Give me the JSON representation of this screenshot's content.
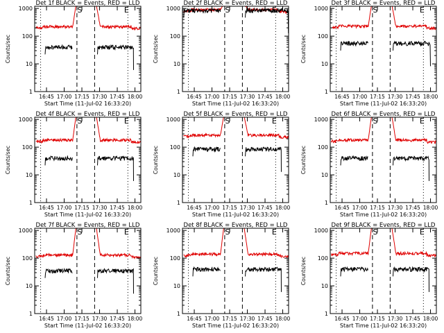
{
  "colors": {
    "events": "#000000",
    "lld": "#e00000",
    "axis": "#000000",
    "background": "#ffffff"
  },
  "shared": {
    "ylabel": "Counts/sec",
    "xlabel": "Start Time (11-Jul-02 16:33:20)",
    "y_ticks": [
      "1",
      "10",
      "100",
      "1000"
    ],
    "ylim": [
      1,
      1200
    ],
    "start_marker": "S",
    "end_marker": "E",
    "legend": {
      "events": "BLACK = Events",
      "lld": "RED = LLD"
    }
  },
  "chart_data": [
    {
      "id": 1,
      "type": "line",
      "title": "Det 1f BLACK = Events, RED = LLD",
      "xlim": [
        16.583,
        18.083
      ],
      "x_ticks": [
        "16:45",
        "17:00",
        "17:15",
        "17:30",
        "17:45",
        "18:00"
      ],
      "x_tick_values": [
        16.75,
        17.0,
        17.25,
        17.5,
        17.75,
        18.0
      ],
      "dotted_x": [
        16.667,
        17.9
      ],
      "dashed_x": [
        17.18,
        17.43
      ],
      "start_marker_x": 17.22,
      "end_marker_x": 17.88,
      "lld_level": 220,
      "events_level": 40,
      "saa": [
        17.16,
        17.45
      ],
      "series": [
        {
          "name": "Events",
          "segments": [
            [
              16.73,
              17.12
            ],
            [
              17.47,
              17.98
            ]
          ]
        },
        {
          "name": "LLD",
          "segments": [
            [
              16.6,
              18.08
            ]
          ]
        }
      ]
    },
    {
      "id": 2,
      "type": "line",
      "title": "Det 2f BLACK = Events, RED = LLD",
      "xlim": [
        16.583,
        18.083
      ],
      "x_ticks": [
        "16:45",
        "17:00",
        "17:15",
        "17:30",
        "17:45",
        "18:00"
      ],
      "x_tick_values": [
        16.75,
        17.0,
        17.25,
        17.5,
        17.75,
        18.0
      ],
      "dotted_x": [
        16.667,
        17.9
      ],
      "dashed_x": [
        17.18,
        17.43
      ],
      "start_marker_x": 17.22,
      "end_marker_x": 17.88,
      "lld_level": 900,
      "events_level": 850,
      "saa": [
        17.16,
        17.45
      ],
      "series": [
        {
          "name": "Events",
          "segments": [
            [
              16.6,
              17.12
            ],
            [
              17.47,
              18.08
            ]
          ]
        },
        {
          "name": "LLD",
          "segments": [
            [
              16.6,
              18.08
            ]
          ]
        }
      ]
    },
    {
      "id": 3,
      "type": "line",
      "title": "Det 3f BLACK = Events, RED = LLD",
      "xlim": [
        16.583,
        18.083
      ],
      "x_ticks": [
        "16:45",
        "17:00",
        "17:15",
        "17:30",
        "17:45",
        "18:00"
      ],
      "x_tick_values": [
        16.75,
        17.0,
        17.25,
        17.5,
        17.75,
        18.0
      ],
      "dotted_x": [
        16.667,
        17.9
      ],
      "dashed_x": [
        17.18,
        17.43
      ],
      "start_marker_x": 17.22,
      "end_marker_x": 17.88,
      "lld_level": 230,
      "events_level": 55,
      "saa": [
        17.16,
        17.45
      ],
      "series": [
        {
          "name": "Events",
          "segments": [
            [
              16.73,
              17.12
            ],
            [
              17.47,
              18.0
            ]
          ]
        },
        {
          "name": "LLD",
          "segments": [
            [
              16.6,
              18.08
            ]
          ]
        }
      ]
    },
    {
      "id": 4,
      "type": "line",
      "title": "Det 4f BLACK = Events, RED = LLD",
      "xlim": [
        16.583,
        18.083
      ],
      "x_ticks": [
        "16:45",
        "17:00",
        "17:15",
        "17:30",
        "17:45",
        "18:00"
      ],
      "x_tick_values": [
        16.75,
        17.0,
        17.25,
        17.5,
        17.75,
        18.0
      ],
      "dotted_x": [
        16.667,
        17.9
      ],
      "dashed_x": [
        17.18,
        17.43
      ],
      "start_marker_x": 17.22,
      "end_marker_x": 17.88,
      "lld_level": 180,
      "events_level": 40,
      "saa": [
        17.16,
        17.45
      ],
      "series": [
        {
          "name": "Events",
          "segments": [
            [
              16.73,
              17.12
            ],
            [
              17.47,
              17.98
            ]
          ]
        },
        {
          "name": "LLD",
          "segments": [
            [
              16.6,
              18.08
            ]
          ]
        }
      ]
    },
    {
      "id": 5,
      "type": "line",
      "title": "Det 5f BLACK = Events, RED = LLD",
      "xlim": [
        16.583,
        18.083
      ],
      "x_ticks": [
        "16:45",
        "17:00",
        "17:15",
        "17:30",
        "17:45",
        "18:00"
      ],
      "x_tick_values": [
        16.75,
        17.0,
        17.25,
        17.5,
        17.75,
        18.0
      ],
      "dotted_x": [
        16.667,
        17.9
      ],
      "dashed_x": [
        17.18,
        17.43
      ],
      "start_marker_x": 17.22,
      "end_marker_x": 17.88,
      "lld_level": 270,
      "events_level": 85,
      "saa": [
        17.16,
        17.45
      ],
      "series": [
        {
          "name": "Events",
          "segments": [
            [
              16.73,
              17.12
            ],
            [
              17.47,
              17.98
            ]
          ]
        },
        {
          "name": "LLD",
          "segments": [
            [
              16.6,
              18.08
            ]
          ]
        }
      ]
    },
    {
      "id": 6,
      "type": "line",
      "title": "Det 6f BLACK = Events, RED = LLD",
      "xlim": [
        16.583,
        18.083
      ],
      "x_ticks": [
        "16:45",
        "17:00",
        "17:15",
        "17:30",
        "17:45",
        "18:00"
      ],
      "x_tick_values": [
        16.75,
        17.0,
        17.25,
        17.5,
        17.75,
        18.0
      ],
      "dotted_x": [
        16.667,
        17.9
      ],
      "dashed_x": [
        17.18,
        17.43
      ],
      "start_marker_x": 17.22,
      "end_marker_x": 17.88,
      "lld_level": 180,
      "events_level": 40,
      "saa": [
        17.16,
        17.45
      ],
      "series": [
        {
          "name": "Events",
          "segments": [
            [
              16.73,
              17.12
            ],
            [
              17.47,
              17.98
            ]
          ]
        },
        {
          "name": "LLD",
          "segments": [
            [
              16.6,
              18.08
            ]
          ]
        }
      ]
    },
    {
      "id": 7,
      "type": "line",
      "title": "Det 7f BLACK = Events, RED = LLD",
      "xlim": [
        16.583,
        18.083
      ],
      "x_ticks": [
        "16:45",
        "17:00",
        "17:15",
        "17:30",
        "17:45",
        "18:00"
      ],
      "x_tick_values": [
        16.75,
        17.0,
        17.25,
        17.5,
        17.75,
        18.0
      ],
      "dotted_x": [
        16.667,
        17.9
      ],
      "dashed_x": [
        17.18,
        17.43
      ],
      "start_marker_x": 17.22,
      "end_marker_x": 17.88,
      "lld_level": 130,
      "events_level": 35,
      "saa": [
        17.16,
        17.45
      ],
      "series": [
        {
          "name": "Events",
          "segments": [
            [
              16.73,
              17.12
            ],
            [
              17.47,
              17.98
            ]
          ]
        },
        {
          "name": "LLD",
          "segments": [
            [
              16.6,
              18.08
            ]
          ]
        }
      ]
    },
    {
      "id": 8,
      "type": "line",
      "title": "Det 8f BLACK = Events, RED = LLD",
      "xlim": [
        16.583,
        18.083
      ],
      "x_ticks": [
        "16:45",
        "17:00",
        "17:15",
        "17:30",
        "17:45",
        "18:00"
      ],
      "x_tick_values": [
        16.75,
        17.0,
        17.25,
        17.5,
        17.75,
        18.0
      ],
      "dotted_x": [
        16.667,
        17.9
      ],
      "dashed_x": [
        17.18,
        17.43
      ],
      "start_marker_x": 17.22,
      "end_marker_x": 17.88,
      "lld_level": 140,
      "events_level": 40,
      "saa": [
        17.16,
        17.45
      ],
      "series": [
        {
          "name": "Events",
          "segments": [
            [
              16.73,
              17.12
            ],
            [
              17.47,
              17.98
            ]
          ]
        },
        {
          "name": "LLD",
          "segments": [
            [
              16.6,
              18.08
            ]
          ]
        }
      ]
    },
    {
      "id": 9,
      "type": "line",
      "title": "Det 9f BLACK = Events, RED = LLD",
      "xlim": [
        16.583,
        18.083
      ],
      "x_ticks": [
        "16:45",
        "17:00",
        "17:15",
        "17:30",
        "17:45",
        "18:00"
      ],
      "x_tick_values": [
        16.75,
        17.0,
        17.25,
        17.5,
        17.75,
        18.0
      ],
      "dotted_x": [
        16.667,
        17.9
      ],
      "dashed_x": [
        17.18,
        17.43
      ],
      "start_marker_x": 17.22,
      "end_marker_x": 17.88,
      "lld_level": 150,
      "events_level": 40,
      "saa": [
        17.16,
        17.45
      ],
      "series": [
        {
          "name": "Events",
          "segments": [
            [
              16.73,
              17.12
            ],
            [
              17.47,
              17.98
            ]
          ]
        },
        {
          "name": "LLD",
          "segments": [
            [
              16.6,
              18.08
            ]
          ]
        }
      ]
    }
  ]
}
